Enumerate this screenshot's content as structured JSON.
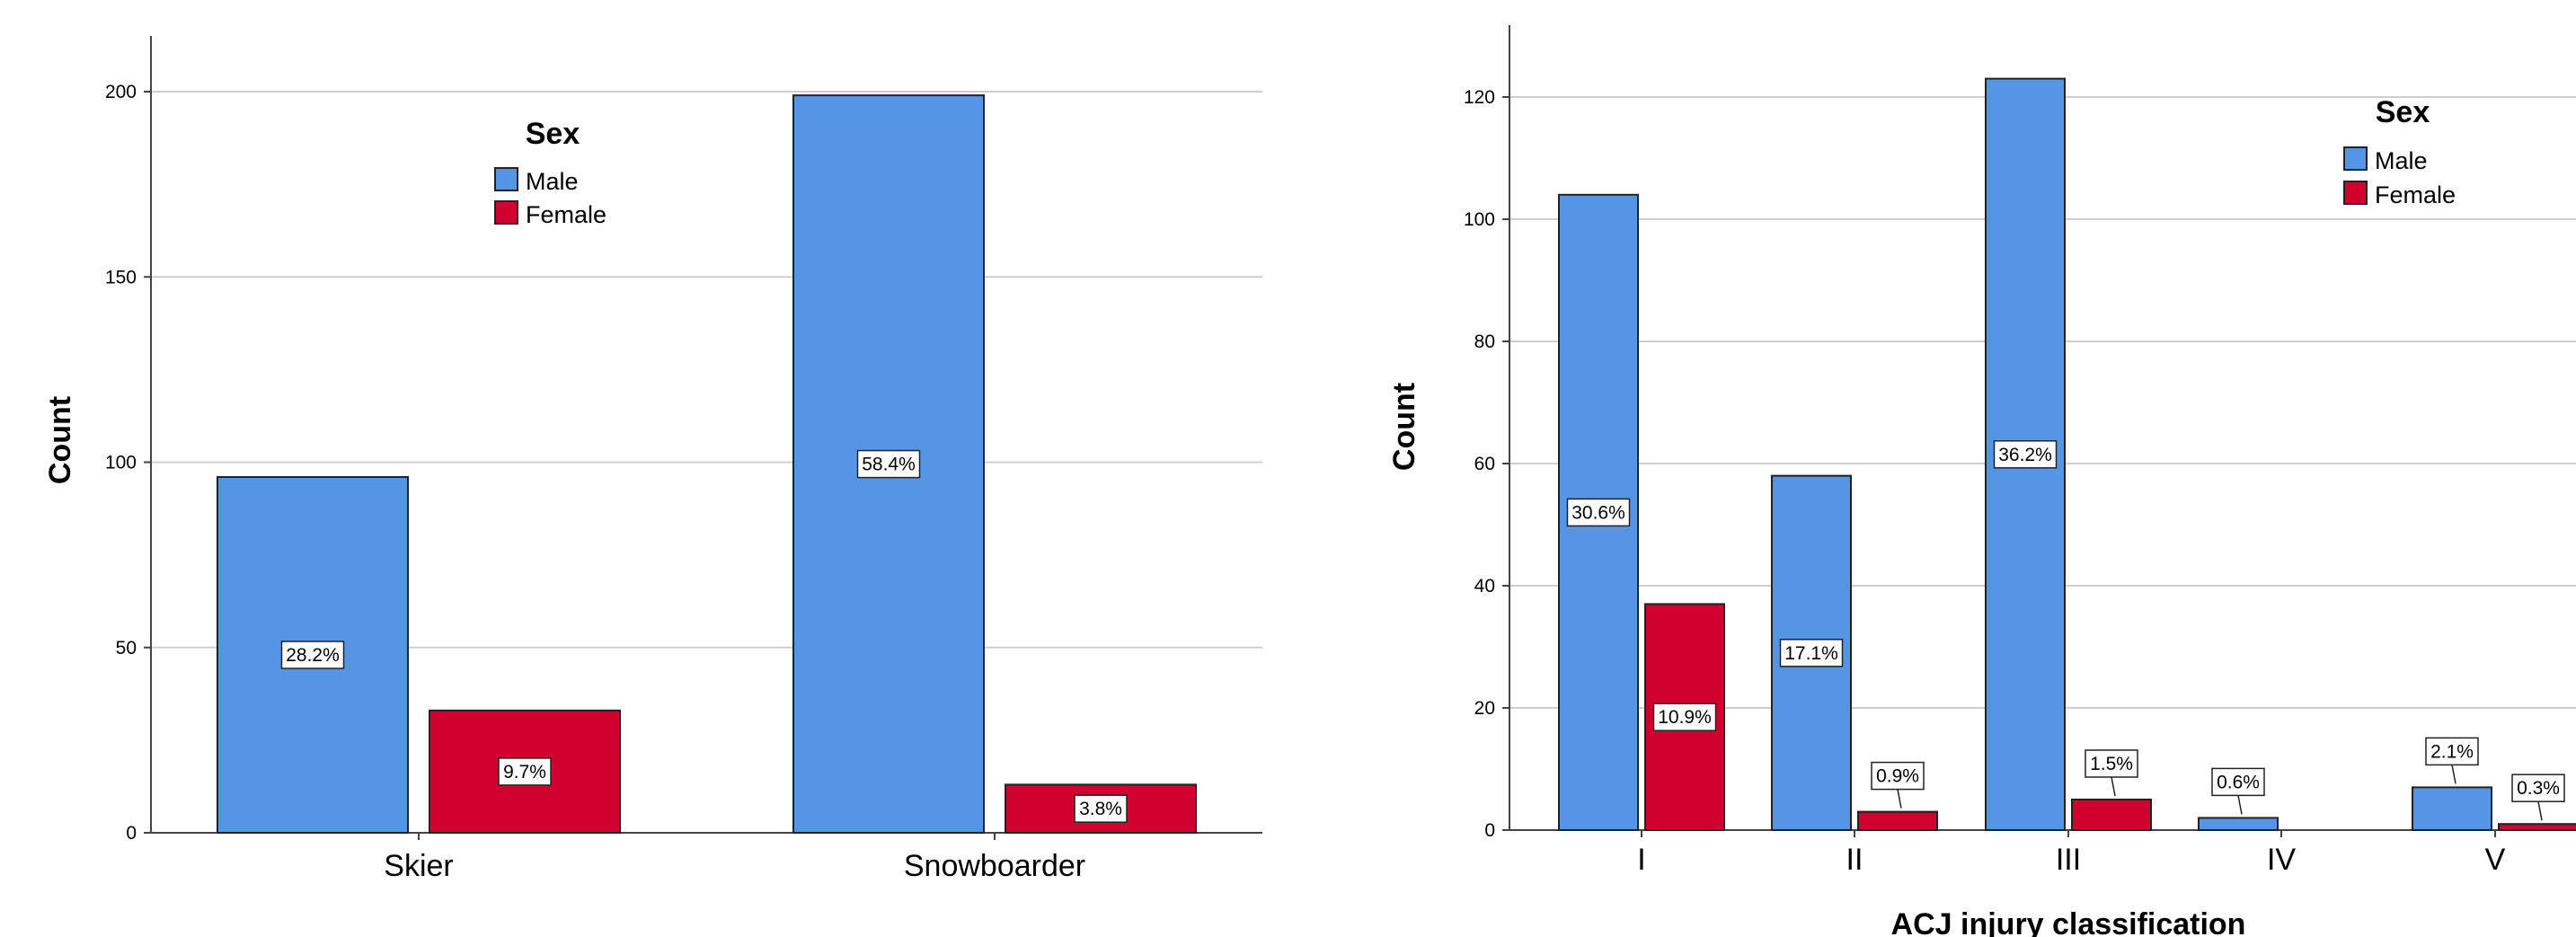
{
  "colors": {
    "male": "#5495e6",
    "female": "#d0002f"
  },
  "chart_data": [
    {
      "type": "bar",
      "categories": [
        "Skier",
        "Snowboarder"
      ],
      "series": [
        {
          "name": "Male",
          "values": [
            96,
            199
          ],
          "labels": [
            "28.2%",
            "58.4%"
          ]
        },
        {
          "name": "Female",
          "values": [
            33,
            13
          ],
          "labels": [
            "9.7%",
            "3.8%"
          ]
        }
      ],
      "xlabel": "",
      "ylabel": "Count",
      "ylim": [
        0,
        200
      ],
      "yticks": [
        0,
        50,
        100,
        150,
        200
      ],
      "grid": true,
      "legend": {
        "title": "Sex",
        "items": [
          "Male",
          "Female"
        ],
        "placement": "top-center"
      }
    },
    {
      "type": "bar",
      "categories": [
        "I",
        "II",
        "III",
        "IV",
        "V"
      ],
      "series": [
        {
          "name": "Male",
          "values": [
            104,
            58,
            123,
            2,
            7
          ],
          "labels": [
            "30.6%",
            "17.1%",
            "36.2%",
            "0.6%",
            "2.1%"
          ]
        },
        {
          "name": "Female",
          "values": [
            37,
            3,
            5,
            0,
            1
          ],
          "labels": [
            "10.9%",
            "0.9%",
            "1.5%",
            "",
            "0.3%"
          ]
        }
      ],
      "xlabel": "ACJ injury classification",
      "ylabel": "Count",
      "ylim": [
        0,
        120
      ],
      "yticks": [
        0,
        20,
        40,
        60,
        80,
        100,
        120
      ],
      "grid": true,
      "legend": {
        "title": "Sex",
        "items": [
          "Male",
          "Female"
        ],
        "placement": "top-right"
      }
    }
  ]
}
